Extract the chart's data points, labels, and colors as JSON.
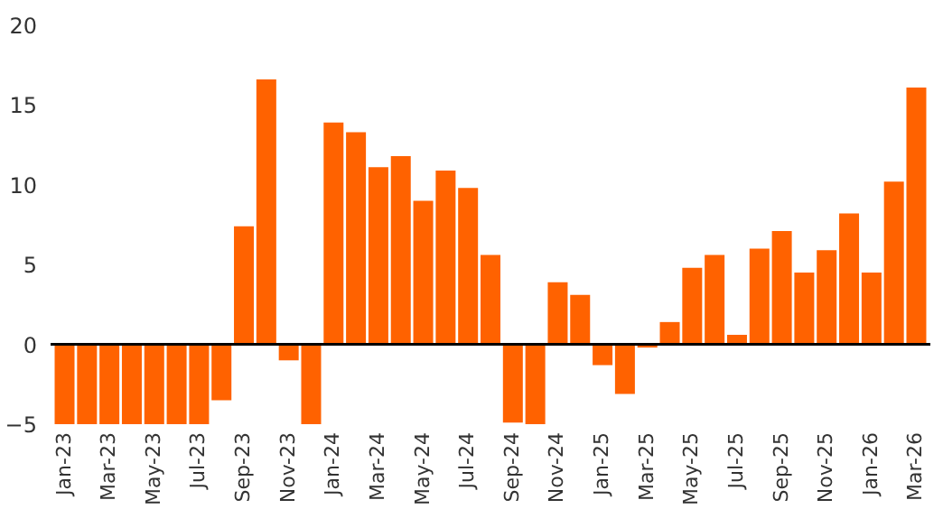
{
  "chart_data": {
    "type": "bar",
    "categories": [
      "Jan-23",
      null,
      "Mar-23",
      null,
      "May-23",
      null,
      "Jul-23",
      null,
      "Sep-23",
      null,
      "Nov-23",
      null,
      "Jan-24",
      null,
      "Mar-24",
      null,
      "May-24",
      null,
      "Jul-24",
      null,
      "Sep-24",
      null,
      "Nov-24",
      null,
      "Jan-25",
      null,
      "Mar-25",
      null,
      "May-25",
      null,
      "Jul-25",
      null,
      "Sep-25",
      null,
      "Nov-25",
      null,
      "Jan-26",
      null,
      "Mar-26"
    ],
    "values": [
      -5,
      -5,
      -5,
      -5,
      -5,
      -5,
      -5,
      -3.5,
      7.4,
      16.6,
      -1.0,
      -5,
      13.9,
      13.3,
      11.1,
      11.8,
      9.0,
      10.9,
      9.8,
      5.6,
      -4.9,
      -5,
      3.9,
      3.1,
      -1.3,
      -3.1,
      -0.2,
      1.4,
      4.8,
      5.6,
      0.6,
      6.0,
      7.1,
      4.5,
      5.9,
      8.2,
      4.5,
      10.2,
      16.1
    ],
    "color": "#ff6200",
    "ylim": [
      -5,
      20
    ],
    "yticks": [
      -5,
      0,
      5,
      10,
      15,
      20
    ],
    "ref_lines": [
      {
        "axis": "y",
        "value": 0,
        "color": "#000000"
      }
    ],
    "grid": false
  }
}
